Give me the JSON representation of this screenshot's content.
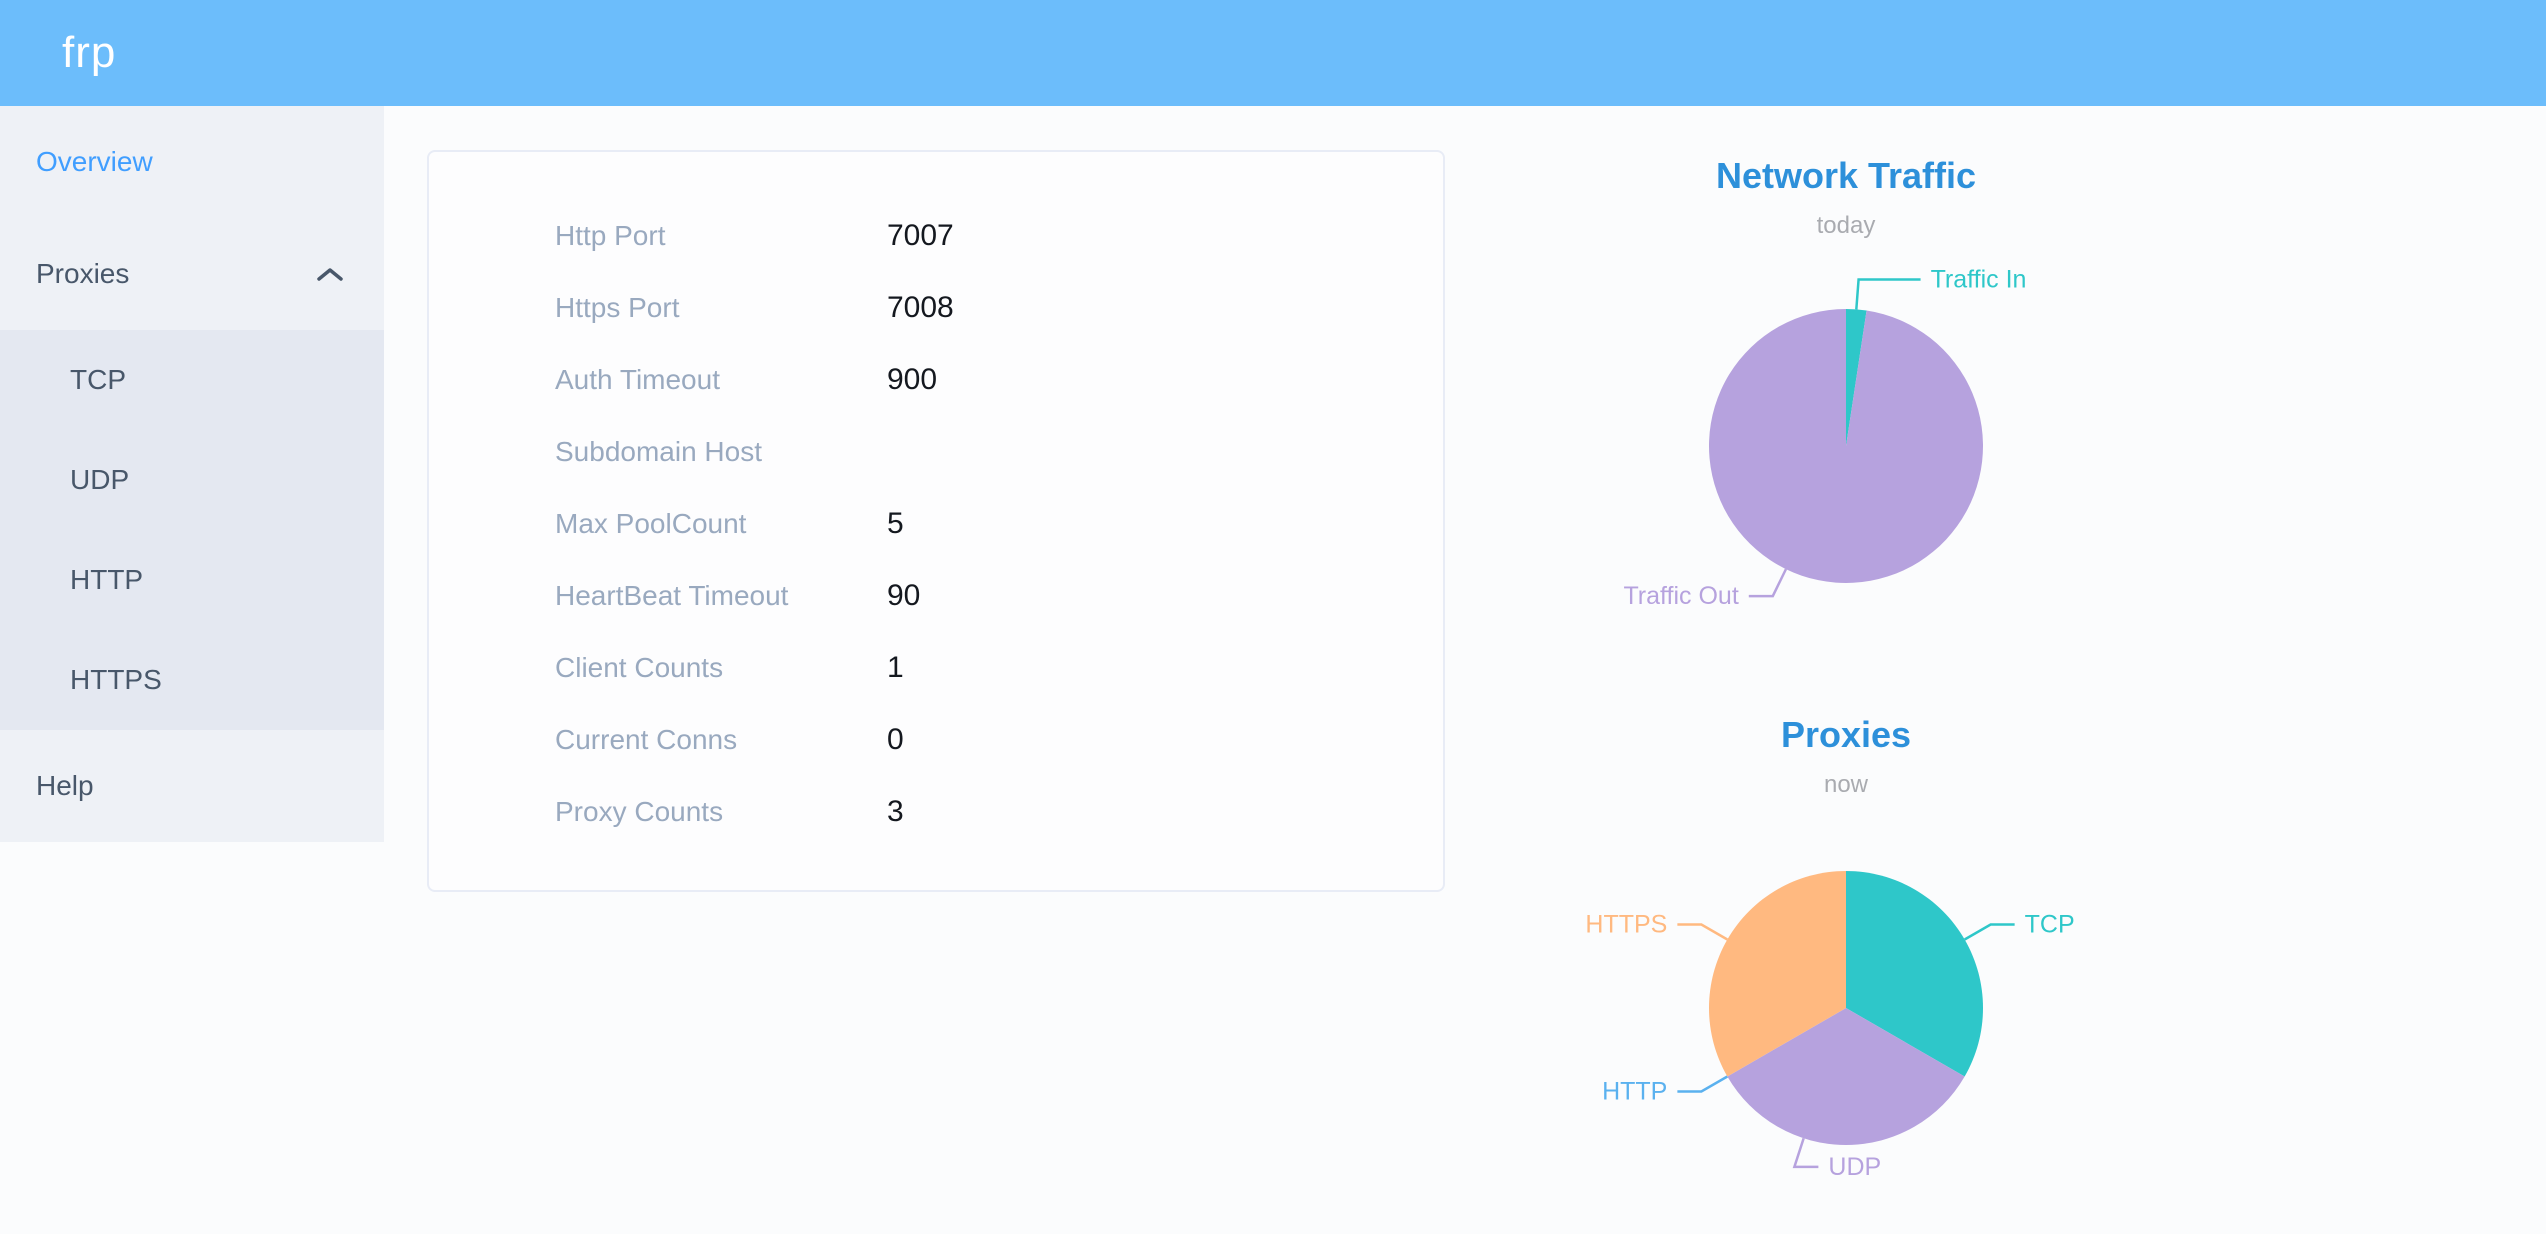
{
  "header": {
    "logo_text": "frp"
  },
  "colors": {
    "header_bg": "#6cbdfb",
    "accent_blue": "#409eff",
    "sidebar_text": "#48576a",
    "sidebar_bg": "#eef1f6",
    "submenu_bg": "#e4e8f1",
    "chart_title_blue": "#2d90da",
    "teal": "#2ec7c9",
    "purple": "#b6a2de",
    "sky_blue": "#5ab1ef",
    "orange": "#ffb980"
  },
  "sidebar": {
    "items": [
      {
        "label": "Overview",
        "active": true
      },
      {
        "label": "Proxies",
        "expanded": true
      },
      {
        "label": "TCP"
      },
      {
        "label": "UDP"
      },
      {
        "label": "HTTP"
      },
      {
        "label": "HTTPS"
      },
      {
        "label": "Help"
      }
    ]
  },
  "overview_card": {
    "rows": [
      {
        "label": "Http Port",
        "value": "7007"
      },
      {
        "label": "Https Port",
        "value": "7008"
      },
      {
        "label": "Auth Timeout",
        "value": "900"
      },
      {
        "label": "Subdomain Host",
        "value": ""
      },
      {
        "label": "Max PoolCount",
        "value": "5"
      },
      {
        "label": "HeartBeat Timeout",
        "value": "90"
      },
      {
        "label": "Client Counts",
        "value": "1"
      },
      {
        "label": "Current Conns",
        "value": "0"
      },
      {
        "label": "Proxy Counts",
        "value": "3"
      }
    ]
  },
  "chart_data": [
    {
      "type": "pie",
      "title": "Network Traffic",
      "subtitle": "today",
      "legend_position": "none",
      "note": "slice values are percent shares estimated from arc angles",
      "slices": [
        {
          "name": "Traffic In",
          "value": 2.4,
          "color": "#2ec7c9",
          "len2": 62
        },
        {
          "name": "Traffic Out",
          "value": 97.6,
          "color": "#b6a2de",
          "labelAngle": 206
        }
      ]
    },
    {
      "type": "pie",
      "title": "Proxies",
      "subtitle": "now",
      "legend_position": "none",
      "note": "proxy counts by type; HTTP slice is zero but still labeled",
      "slices": [
        {
          "name": "TCP",
          "value": 1,
          "color": "#2ec7c9"
        },
        {
          "name": "UDP",
          "value": 1,
          "color": "#b6a2de",
          "labelAngle": 198,
          "labelSide": "right"
        },
        {
          "name": "HTTP",
          "value": 0,
          "color": "#5ab1ef"
        },
        {
          "name": "HTTPS",
          "value": 1,
          "color": "#ffb980"
        }
      ]
    }
  ]
}
